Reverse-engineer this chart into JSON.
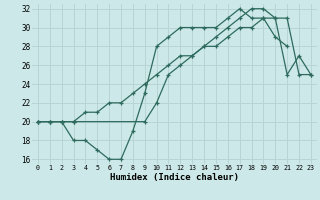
{
  "xlabel": "Humidex (Indice chaleur)",
  "bg_color": "#cce8e8",
  "grid_color": "#b8d4d4",
  "line_color": "#2e6b5e",
  "xlim": [
    -0.5,
    23.5
  ],
  "ylim": [
    15.5,
    32.5
  ],
  "xticks": [
    0,
    1,
    2,
    3,
    4,
    5,
    6,
    7,
    8,
    9,
    10,
    11,
    12,
    13,
    14,
    15,
    16,
    17,
    18,
    19,
    20,
    21,
    22,
    23
  ],
  "yticks": [
    16,
    18,
    20,
    22,
    24,
    26,
    28,
    30,
    32
  ],
  "line1_x": [
    0,
    1,
    2,
    3,
    4,
    5,
    6,
    7,
    8,
    9,
    10,
    11,
    12,
    13,
    14,
    15,
    16,
    17,
    18,
    19,
    20,
    21
  ],
  "line1_y": [
    20,
    20,
    20,
    18,
    18,
    17,
    16,
    16,
    19,
    23,
    28,
    29,
    30,
    30,
    30,
    30,
    31,
    32,
    31,
    31,
    29,
    28
  ],
  "line2_x": [
    0,
    1,
    2,
    3,
    4,
    5,
    6,
    7,
    8,
    9,
    10,
    11,
    12,
    13,
    14,
    15,
    16,
    17,
    18,
    19,
    20,
    21,
    22,
    23
  ],
  "line2_y": [
    20,
    20,
    20,
    20,
    21,
    21,
    22,
    22,
    23,
    24,
    25,
    26,
    27,
    27,
    28,
    28,
    29,
    30,
    30,
    31,
    31,
    31,
    25,
    25
  ],
  "line3_x": [
    0,
    1,
    2,
    3,
    9,
    10,
    11,
    12,
    13,
    14,
    15,
    16,
    17,
    18,
    19,
    20,
    21,
    22,
    23
  ],
  "line3_y": [
    20,
    20,
    20,
    20,
    20,
    22,
    25,
    26,
    27,
    28,
    29,
    30,
    31,
    32,
    32,
    31,
    25,
    27,
    25
  ]
}
